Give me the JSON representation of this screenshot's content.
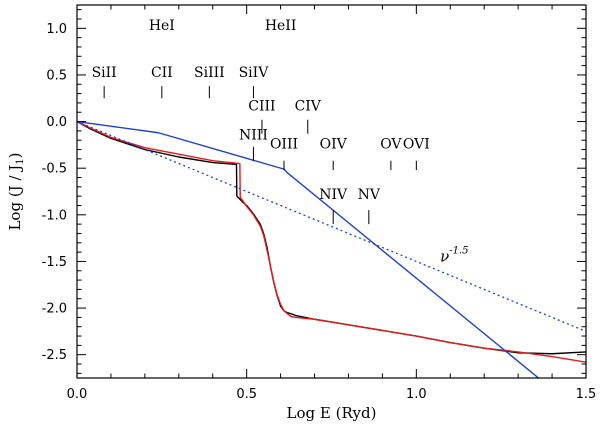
{
  "chart_data": {
    "type": "line",
    "title": "",
    "xlabel": "Log E (Ryd)",
    "ylabel": "Log (J / J",
    "ylabel_sub": "1",
    "ylabel_close": ")",
    "xlim": [
      0.0,
      1.5
    ],
    "ylim": [
      -2.75,
      1.25
    ],
    "xticks": [
      0.0,
      0.5,
      1.0,
      1.5
    ],
    "xtick_labels": [
      "0.0",
      "0.5",
      "1.0",
      "1.5"
    ],
    "yticks": [
      1.0,
      0.5,
      0.0,
      -0.5,
      -1.0,
      -1.5,
      -2.0,
      -2.5
    ],
    "ytick_labels": [
      "1.0",
      "0.5",
      "0.0",
      "-0.5",
      "-1.0",
      "-1.5",
      "-2.0",
      "-2.5"
    ],
    "grid": false,
    "series": [
      {
        "name": "black spectrum",
        "color": "#000000",
        "style": "solid",
        "x": [
          0.0,
          0.04,
          0.1,
          0.2,
          0.3,
          0.4,
          0.47,
          0.471,
          0.49,
          0.5,
          0.52,
          0.54,
          0.55,
          0.56,
          0.57,
          0.58,
          0.59,
          0.6,
          0.61,
          0.62,
          0.63,
          0.645,
          0.7,
          0.8,
          0.9,
          1.0,
          1.1,
          1.2,
          1.3,
          1.4,
          1.5
        ],
        "y": [
          0.0,
          -0.08,
          -0.18,
          -0.3,
          -0.38,
          -0.44,
          -0.46,
          -0.8,
          -0.87,
          -0.9,
          -0.99,
          -1.1,
          -1.2,
          -1.35,
          -1.55,
          -1.73,
          -1.87,
          -1.98,
          -2.03,
          -2.05,
          -2.06,
          -2.08,
          -2.12,
          -2.18,
          -2.24,
          -2.3,
          -2.37,
          -2.43,
          -2.48,
          -2.49,
          -2.47
        ]
      },
      {
        "name": "red spectrum",
        "color": "#e41a1c",
        "style": "solid",
        "x": [
          0.0,
          0.04,
          0.1,
          0.2,
          0.3,
          0.4,
          0.48,
          0.481,
          0.5,
          0.52,
          0.54,
          0.55,
          0.56,
          0.57,
          0.58,
          0.59,
          0.6,
          0.61,
          0.62,
          0.63,
          0.645,
          0.7,
          0.8,
          0.9,
          1.0,
          1.1,
          1.2,
          1.3,
          1.4,
          1.5
        ],
        "y": [
          0.0,
          -0.07,
          -0.17,
          -0.28,
          -0.35,
          -0.42,
          -0.45,
          -0.81,
          -0.91,
          -1.0,
          -1.12,
          -1.22,
          -1.38,
          -1.55,
          -1.72,
          -1.86,
          -1.96,
          -2.03,
          -2.06,
          -2.09,
          -2.1,
          -2.12,
          -2.18,
          -2.24,
          -2.3,
          -2.37,
          -2.43,
          -2.47,
          -2.52,
          -2.58
        ]
      },
      {
        "name": "blue broken power law",
        "color": "#1f3fd6",
        "style": "solid",
        "x": [
          0.0,
          0.24,
          0.61,
          0.62,
          1.36
        ],
        "y": [
          0.0,
          -0.12,
          -0.51,
          -0.55,
          -2.75
        ]
      },
      {
        "name": "power law nu^-1.5",
        "color": "#1f3fd6",
        "style": "dotted",
        "x": [
          0.0,
          1.5
        ],
        "y": [
          0.0,
          -2.25
        ]
      }
    ],
    "annotations": [
      {
        "text": "ν",
        "sup": "-1.5",
        "x": 1.07,
        "y": -1.5
      }
    ],
    "ion_markers": [
      {
        "label": "SiII",
        "x": 0.08,
        "tick_y": [
          0.25,
          0.38
        ],
        "label_y": 0.48
      },
      {
        "label": "HeI",
        "x": 0.25,
        "tick_y": null,
        "label_y": 0.98
      },
      {
        "label": "CII",
        "x": 0.25,
        "tick_y": [
          0.25,
          0.38
        ],
        "label_y": 0.48
      },
      {
        "label": "SiIII",
        "x": 0.39,
        "tick_y": [
          0.25,
          0.38
        ],
        "label_y": 0.48
      },
      {
        "label": "SiIV",
        "x": 0.52,
        "tick_y": [
          0.25,
          0.38
        ],
        "label_y": 0.48
      },
      {
        "label": "HeII",
        "x": 0.6,
        "tick_y": null,
        "label_y": 0.98
      },
      {
        "label": "CIII",
        "x": 0.545,
        "tick_y": [
          -0.13,
          0.02
        ],
        "label_y": 0.12
      },
      {
        "label": "CIV",
        "x": 0.68,
        "tick_y": [
          -0.13,
          0.02
        ],
        "label_y": 0.12
      },
      {
        "label": "NIII",
        "x": 0.52,
        "tick_y": [
          -0.42,
          -0.27
        ],
        "label_y": -0.19
      },
      {
        "label": "OIII",
        "x": 0.61,
        "tick_y": [
          -0.52,
          -0.42
        ],
        "label_y": -0.29
      },
      {
        "label": "OIV",
        "x": 0.755,
        "tick_y": [
          -0.52,
          -0.42
        ],
        "label_y": -0.29
      },
      {
        "label": "OV",
        "x": 0.925,
        "tick_y": [
          -0.52,
          -0.42
        ],
        "label_y": -0.29
      },
      {
        "label": "OVI",
        "x": 1.0,
        "tick_y": [
          -0.52,
          -0.42
        ],
        "label_y": -0.29
      },
      {
        "label": "NIV",
        "x": 0.755,
        "tick_y": [
          -1.1,
          -0.95
        ],
        "label_y": -0.83
      },
      {
        "label": "NV",
        "x": 0.86,
        "tick_y": [
          -1.1,
          -0.95
        ],
        "label_y": -0.83
      }
    ]
  }
}
